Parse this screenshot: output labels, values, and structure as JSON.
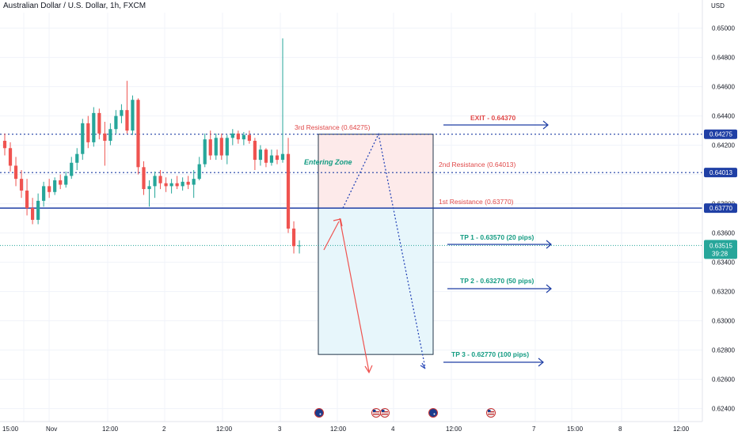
{
  "header": {
    "symbol_title": "Australian Dollar / U.S. Dollar, 1h, FXCM",
    "currency": "USD"
  },
  "colors": {
    "up": "#26a69a",
    "down": "#ef5350",
    "resistance_line": "#1f3fa5",
    "entry_zone_fill": "#fdeaea",
    "target_zone_fill": "#e7f6fb",
    "red_text": "#e04848",
    "teal_text": "#139b82",
    "blue_arrow": "#1f3fa5",
    "last_price_bg": "#26a69a",
    "level_bg": "#1f3fa5"
  },
  "chart_data": {
    "type": "candlestick",
    "y_axis": {
      "ylim": [
        0.6236,
        0.65095
      ],
      "tick_labels": [
        "0.65000",
        "0.64800",
        "0.64600",
        "0.64400",
        "0.64200",
        "0.64000",
        "0.63800",
        "0.63600",
        "0.63400",
        "0.63200",
        "0.63000",
        "0.62800",
        "0.62600",
        "0.62400"
      ]
    },
    "x_axis": {
      "tick_labels": [
        "15:00",
        "Nov",
        "12:00",
        "2",
        "12:00",
        "3",
        "12:00",
        "4",
        "12:00",
        "7",
        "15:00",
        "8",
        "12:00"
      ]
    },
    "candles": [
      {
        "o": 0.6423,
        "h": 0.6428,
        "l": 0.6413,
        "c": 0.6418
      },
      {
        "o": 0.6418,
        "h": 0.6422,
        "l": 0.6402,
        "c": 0.6406
      },
      {
        "o": 0.6406,
        "h": 0.6412,
        "l": 0.6392,
        "c": 0.6397
      },
      {
        "o": 0.6397,
        "h": 0.6403,
        "l": 0.6384,
        "c": 0.6389
      },
      {
        "o": 0.6389,
        "h": 0.6397,
        "l": 0.6372,
        "c": 0.6377
      },
      {
        "o": 0.6377,
        "h": 0.6384,
        "l": 0.6366,
        "c": 0.6369
      },
      {
        "o": 0.6369,
        "h": 0.6387,
        "l": 0.6366,
        "c": 0.6382
      },
      {
        "o": 0.6382,
        "h": 0.6395,
        "l": 0.6378,
        "c": 0.6392
      },
      {
        "o": 0.6392,
        "h": 0.6397,
        "l": 0.6384,
        "c": 0.6388
      },
      {
        "o": 0.6388,
        "h": 0.6398,
        "l": 0.6386,
        "c": 0.6396
      },
      {
        "o": 0.6396,
        "h": 0.64,
        "l": 0.639,
        "c": 0.6393
      },
      {
        "o": 0.6393,
        "h": 0.6402,
        "l": 0.6391,
        "c": 0.6399
      },
      {
        "o": 0.6399,
        "h": 0.6412,
        "l": 0.6397,
        "c": 0.6408
      },
      {
        "o": 0.6408,
        "h": 0.6418,
        "l": 0.6403,
        "c": 0.6414
      },
      {
        "o": 0.6414,
        "h": 0.6438,
        "l": 0.641,
        "c": 0.6435
      },
      {
        "o": 0.6435,
        "h": 0.644,
        "l": 0.6418,
        "c": 0.6422
      },
      {
        "o": 0.6422,
        "h": 0.6446,
        "l": 0.6419,
        "c": 0.6442
      },
      {
        "o": 0.6442,
        "h": 0.6445,
        "l": 0.6424,
        "c": 0.6428
      },
      {
        "o": 0.6428,
        "h": 0.6436,
        "l": 0.6406,
        "c": 0.6423
      },
      {
        "o": 0.6423,
        "h": 0.6435,
        "l": 0.642,
        "c": 0.6431
      },
      {
        "o": 0.6431,
        "h": 0.6444,
        "l": 0.6428,
        "c": 0.644
      },
      {
        "o": 0.644,
        "h": 0.6448,
        "l": 0.6435,
        "c": 0.6444
      },
      {
        "o": 0.6444,
        "h": 0.6464,
        "l": 0.6428,
        "c": 0.643
      },
      {
        "o": 0.643,
        "h": 0.6454,
        "l": 0.6427,
        "c": 0.6451
      },
      {
        "o": 0.6451,
        "h": 0.6452,
        "l": 0.64,
        "c": 0.6405
      },
      {
        "o": 0.6405,
        "h": 0.6409,
        "l": 0.6386,
        "c": 0.639
      },
      {
        "o": 0.639,
        "h": 0.6396,
        "l": 0.6378,
        "c": 0.6392
      },
      {
        "o": 0.6392,
        "h": 0.6402,
        "l": 0.6384,
        "c": 0.6399
      },
      {
        "o": 0.6399,
        "h": 0.6403,
        "l": 0.639,
        "c": 0.6394
      },
      {
        "o": 0.6394,
        "h": 0.6398,
        "l": 0.6388,
        "c": 0.6392
      },
      {
        "o": 0.6392,
        "h": 0.6397,
        "l": 0.6387,
        "c": 0.6394
      },
      {
        "o": 0.6394,
        "h": 0.6399,
        "l": 0.639,
        "c": 0.6392
      },
      {
        "o": 0.6392,
        "h": 0.6398,
        "l": 0.6389,
        "c": 0.6395
      },
      {
        "o": 0.6395,
        "h": 0.6399,
        "l": 0.639,
        "c": 0.6393
      },
      {
        "o": 0.6393,
        "h": 0.6403,
        "l": 0.6384,
        "c": 0.6397
      },
      {
        "o": 0.6397,
        "h": 0.6412,
        "l": 0.6396,
        "c": 0.6407
      },
      {
        "o": 0.6407,
        "h": 0.6428,
        "l": 0.6405,
        "c": 0.6424
      },
      {
        "o": 0.6424,
        "h": 0.643,
        "l": 0.641,
        "c": 0.6413
      },
      {
        "o": 0.6413,
        "h": 0.6428,
        "l": 0.641,
        "c": 0.6425
      },
      {
        "o": 0.6425,
        "h": 0.6428,
        "l": 0.641,
        "c": 0.6413
      },
      {
        "o": 0.6413,
        "h": 0.6427,
        "l": 0.6407,
        "c": 0.6425
      },
      {
        "o": 0.6425,
        "h": 0.6431,
        "l": 0.642,
        "c": 0.6428
      },
      {
        "o": 0.6428,
        "h": 0.643,
        "l": 0.6421,
        "c": 0.6424
      },
      {
        "o": 0.6424,
        "h": 0.6429,
        "l": 0.642,
        "c": 0.6427
      },
      {
        "o": 0.6427,
        "h": 0.643,
        "l": 0.6421,
        "c": 0.6423
      },
      {
        "o": 0.6423,
        "h": 0.6425,
        "l": 0.6403,
        "c": 0.641
      },
      {
        "o": 0.641,
        "h": 0.642,
        "l": 0.6406,
        "c": 0.6417
      },
      {
        "o": 0.6417,
        "h": 0.6418,
        "l": 0.6405,
        "c": 0.6408
      },
      {
        "o": 0.6408,
        "h": 0.6417,
        "l": 0.6406,
        "c": 0.6413
      },
      {
        "o": 0.6413,
        "h": 0.6417,
        "l": 0.6407,
        "c": 0.641
      },
      {
        "o": 0.641,
        "h": 0.6493,
        "l": 0.6408,
        "c": 0.6414
      },
      {
        "o": 0.6414,
        "h": 0.6425,
        "l": 0.636,
        "c": 0.6363
      },
      {
        "o": 0.6363,
        "h": 0.6368,
        "l": 0.6346,
        "c": 0.6351
      },
      {
        "o": 0.6351,
        "h": 0.6355,
        "l": 0.6346,
        "c": 0.63515
      }
    ],
    "levels": [
      {
        "name": "3rd Resistance (0.64275)",
        "value": 0.64275,
        "axis_label": "0.64275",
        "style": "dotted"
      },
      {
        "name": "2nd Resistance (0.64013)",
        "value": 0.64013,
        "axis_label": "0.64013",
        "style": "dotted"
      },
      {
        "name": "1st Resistance (0.63770)",
        "value": 0.6377,
        "axis_label": "0.63770",
        "style": "solid"
      }
    ],
    "last_price": {
      "value": 0.63515,
      "label": "0.63515",
      "countdown": "39:28"
    },
    "annotations": {
      "exit": "EXIT - 0.64370",
      "entering_zone": "Entering Zone",
      "tp1": "TP 1 - 0.63570 (20 pips)",
      "tp2": "TP 2 - 0.63270 (50 pips)",
      "tp3": "TP 3 - 0.62770 (100 pips)"
    },
    "zone": {
      "top": 0.64275,
      "entry": 0.6377,
      "bottom": 0.6277
    },
    "event_icons": [
      {
        "label": "AU"
      },
      {
        "label": "US"
      },
      {
        "label": "US"
      },
      {
        "label": "AU"
      },
      {
        "label": "US"
      }
    ]
  }
}
